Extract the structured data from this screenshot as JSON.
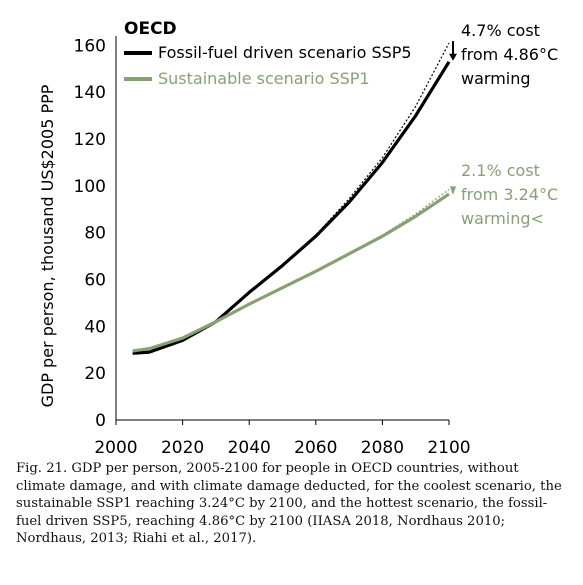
{
  "chart_data": {
    "type": "line",
    "title": "OECD",
    "ylabel": "GDP per person, thousand US$2005 PPP",
    "xlabel": "",
    "xlim": [
      2000,
      2100
    ],
    "ylim": [
      0,
      170
    ],
    "xticks": [
      2000,
      2020,
      2040,
      2060,
      2080,
      2100
    ],
    "yticks": [
      0,
      20,
      40,
      60,
      80,
      100,
      120,
      140,
      160
    ],
    "grid": false,
    "legend_position": "top-left",
    "series": [
      {
        "name": "Fossil-fuel driven scenario SSP5",
        "color": "#000000",
        "x": [
          2005,
          2010,
          2020,
          2030,
          2040,
          2050,
          2060,
          2070,
          2080,
          2090,
          2100
        ],
        "y": [
          28.5,
          29,
          34,
          42,
          54.5,
          66,
          78.5,
          93,
          110,
          130,
          153
        ],
        "no_damage_y": [
          28.5,
          29,
          34,
          42,
          54.5,
          66,
          79,
          94.5,
          112,
          134,
          161
        ]
      },
      {
        "name": "Sustainable scenario SSP1",
        "color": "#86a174",
        "x": [
          2005,
          2010,
          2020,
          2030,
          2040,
          2050,
          2060,
          2070,
          2080,
          2090,
          2100
        ],
        "y": [
          29.5,
          30.5,
          35,
          42,
          49.5,
          56.5,
          63.5,
          71,
          78.5,
          87,
          96.5
        ],
        "no_damage_y": [
          29.5,
          30.5,
          35,
          42,
          49.5,
          56.5,
          63.5,
          71,
          79,
          88,
          98.5
        ]
      }
    ],
    "annotations": [
      {
        "lines": [
          "4.7% cost",
          "from 4.86°C",
          "warming"
        ],
        "color": "#000000"
      },
      {
        "lines": [
          "2.1% cost",
          "from 3.24°C",
          "warming<"
        ],
        "color": "#86a174"
      }
    ]
  },
  "caption": "Fig. 21. GDP per person, 2005-2100 for people in OECD countries, without climate damage, and with climate damage deducted, for the coolest scenario, the sustainable SSP1 reaching 3.24°C by 2100, and the hottest scenario, the fossil-fuel driven SSP5, reaching 4.86°C by 2100 (IIASA 2018, Nordhaus 2010; Nordhaus, 2013; Riahi et al., 2017)."
}
